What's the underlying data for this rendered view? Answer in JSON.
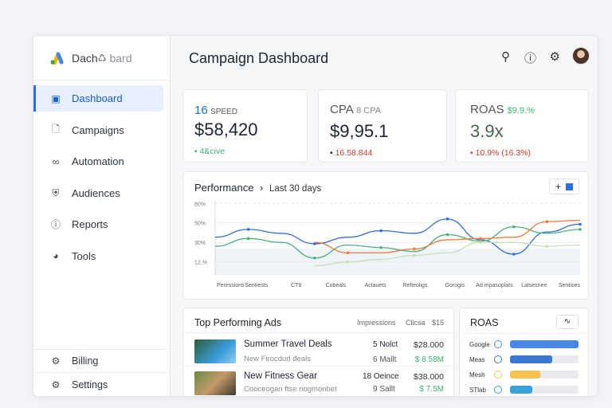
{
  "sidebar": {
    "logo_left": "Dach",
    "logo_right": "bard",
    "items": [
      {
        "label": "Dashboard",
        "icon": "dashboard-icon",
        "active": true
      },
      {
        "label": "Campaigns",
        "icon": "document-icon"
      },
      {
        "label": "Automation",
        "icon": "automation-icon"
      },
      {
        "label": "Audiences",
        "icon": "shield-icon"
      },
      {
        "label": "Reports",
        "icon": "reports-icon"
      },
      {
        "label": "Tools",
        "icon": "tools-icon"
      }
    ],
    "bottom": [
      {
        "label": "Billing",
        "icon": "gear-icon"
      },
      {
        "label": "Settings",
        "icon": "gear-icon"
      }
    ]
  },
  "header": {
    "title": "Campaign Dashboard"
  },
  "kpis": [
    {
      "label_accent": "16",
      "label": "SPEED",
      "value": "$58,420",
      "delta": "• 4&cive",
      "delta_color": "#3bb273"
    },
    {
      "label": "CPA",
      "label_extra": "8 CPA",
      "value": "$9,95.1",
      "delta": "16.58.844",
      "delta_color": "#d23a2a"
    },
    {
      "label": "ROAS",
      "label_extra": "$9.9.%",
      "value": "3.9x",
      "delta": "10.9% (16.3%)",
      "delta_color": "#d23a2a"
    }
  ],
  "performance": {
    "title": "Performance",
    "range": "Last 30 days"
  },
  "chart_data": {
    "type": "line",
    "yticks": [
      "60%",
      "50%",
      "30%",
      "12.%"
    ],
    "xticks": [
      "Peressions",
      "Sentiests",
      "CT9",
      "Cobeals",
      "Actauets",
      "Refteoligs",
      "Gorogis",
      "Ad mpasoplats",
      "Latsesnee",
      "Sentioes"
    ],
    "ylim": [
      5,
      62
    ],
    "series": [
      {
        "color": "#2f6fdf",
        "values": [
          34,
          40,
          37,
          29,
          34,
          39,
          37,
          48,
          32,
          21,
          38,
          44
        ]
      },
      {
        "color": "#4cb07f",
        "values": [
          27,
          33,
          30,
          18,
          28,
          26,
          23,
          36,
          31,
          42,
          37,
          40
        ]
      },
      {
        "color": "#ec7a3c",
        "values": [
          null,
          null,
          null,
          30,
          22,
          22,
          25,
          32,
          33,
          34,
          46,
          47
        ]
      },
      {
        "color": "#c7dfb0",
        "values": [
          null,
          null,
          null,
          12,
          15,
          17,
          20,
          22,
          30,
          30,
          27,
          28
        ]
      }
    ]
  },
  "top_ads": {
    "title": "Top Performing Ads",
    "columns": [
      "Impressions",
      "Clicsa",
      "$15"
    ],
    "rows": [
      {
        "name": "Summer Travel Deals",
        "sub": "New Firocdud đeals",
        "impr": "5 Nolct",
        "impr2": "6 Mallt",
        "value": "$28.000",
        "value2": "$ 8.58M"
      },
      {
        "name": "New Fitness Gear",
        "sub": "Cooceogan ftse nogmonbet",
        "impr": "18 Oeince",
        "impr2": "9 Sallt",
        "value": "$38.000",
        "value2": "$ 7.5M"
      }
    ]
  },
  "roas": {
    "title": "ROAS",
    "items": [
      {
        "label": "Google",
        "pct": 100,
        "color": "#4a86e8"
      },
      {
        "label": "Meas",
        "pct": 62,
        "color": "#3a78d4"
      },
      {
        "label": "Mesh",
        "pct": 44,
        "color": "#f7c250"
      },
      {
        "label": "STlab",
        "pct": 33,
        "color": "#3aa0d8"
      }
    ]
  }
}
